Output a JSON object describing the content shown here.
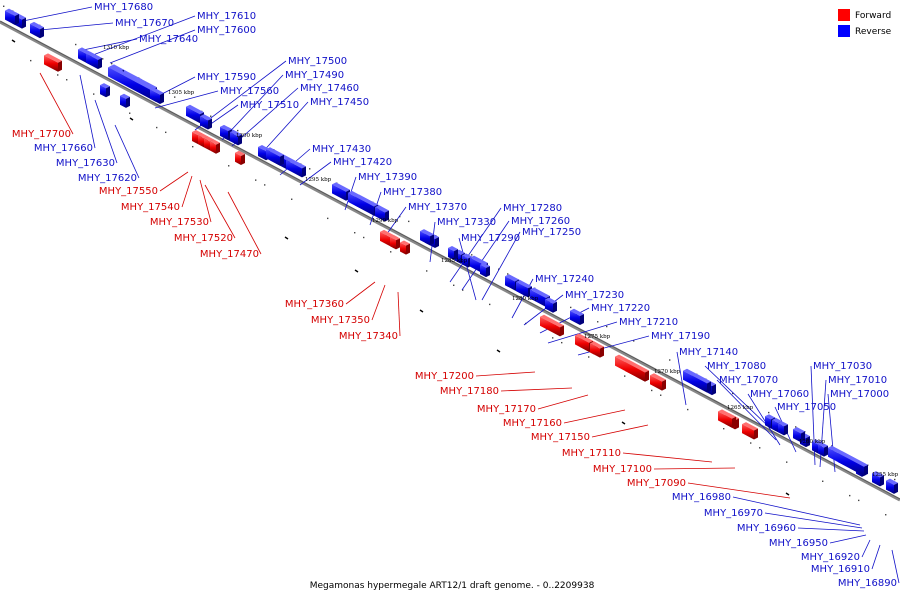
{
  "caption": "Megamonas hypermegale ART12/1 draft genome. - 0..2209938",
  "legend": {
    "forward": {
      "label": "Forward",
      "color": "#ff0000"
    },
    "reverse": {
      "label": "Reverse",
      "color": "#0000ff"
    }
  },
  "colors": {
    "forward_text": "#d40000",
    "reverse_text": "#1010c8",
    "backbone": "#777777"
  },
  "ticks": [
    {
      "pos": 1310,
      "label": "1310 kbp"
    },
    {
      "pos": 1305,
      "label": "1305 kbp"
    },
    {
      "pos": 1300,
      "label": "1300 kbp"
    },
    {
      "pos": 1295,
      "label": "1295 kbp"
    },
    {
      "pos": 1290,
      "label": "1290 kbp"
    },
    {
      "pos": 1285,
      "label": "1285 kbp"
    },
    {
      "pos": 1280,
      "label": "1280 kbp"
    },
    {
      "pos": 1275,
      "label": "1275 kbp"
    },
    {
      "pos": 1270,
      "label": "1270 kbp"
    },
    {
      "pos": 1265,
      "label": "1265 kbp"
    },
    {
      "pos": 1260,
      "label": "1260 kbp"
    },
    {
      "pos": 1255,
      "label": "1255 kbp"
    }
  ],
  "genes": [
    {
      "name": "MHY_17680",
      "strand": "reverse"
    },
    {
      "name": "MHY_17670",
      "strand": "reverse"
    },
    {
      "name": "MHY_17610",
      "strand": "reverse"
    },
    {
      "name": "MHY_17600",
      "strand": "reverse"
    },
    {
      "name": "MHY_17640",
      "strand": "reverse"
    },
    {
      "name": "MHY_17590",
      "strand": "reverse"
    },
    {
      "name": "MHY_17500",
      "strand": "reverse"
    },
    {
      "name": "MHY_17490",
      "strand": "reverse"
    },
    {
      "name": "MHY_17460",
      "strand": "reverse"
    },
    {
      "name": "MHY_17560",
      "strand": "reverse"
    },
    {
      "name": "MHY_17450",
      "strand": "reverse"
    },
    {
      "name": "MHY_17510",
      "strand": "reverse"
    },
    {
      "name": "MHY_17700",
      "strand": "forward"
    },
    {
      "name": "MHY_17660",
      "strand": "reverse"
    },
    {
      "name": "MHY_17630",
      "strand": "reverse"
    },
    {
      "name": "MHY_17620",
      "strand": "reverse"
    },
    {
      "name": "MHY_17550",
      "strand": "forward"
    },
    {
      "name": "MHY_17540",
      "strand": "forward"
    },
    {
      "name": "MHY_17530",
      "strand": "forward"
    },
    {
      "name": "MHY_17520",
      "strand": "forward"
    },
    {
      "name": "MHY_17470",
      "strand": "forward"
    },
    {
      "name": "MHY_17430",
      "strand": "reverse"
    },
    {
      "name": "MHY_17420",
      "strand": "reverse"
    },
    {
      "name": "MHY_17390",
      "strand": "reverse"
    },
    {
      "name": "MHY_17380",
      "strand": "reverse"
    },
    {
      "name": "MHY_17370",
      "strand": "reverse"
    },
    {
      "name": "MHY_17330",
      "strand": "reverse"
    },
    {
      "name": "MHY_17280",
      "strand": "reverse"
    },
    {
      "name": "MHY_17260",
      "strand": "reverse"
    },
    {
      "name": "MHY_17290",
      "strand": "reverse"
    },
    {
      "name": "MHY_17250",
      "strand": "reverse"
    },
    {
      "name": "MHY_17360",
      "strand": "forward"
    },
    {
      "name": "MHY_17350",
      "strand": "forward"
    },
    {
      "name": "MHY_17340",
      "strand": "forward"
    },
    {
      "name": "MHY_17240",
      "strand": "reverse"
    },
    {
      "name": "MHY_17230",
      "strand": "reverse"
    },
    {
      "name": "MHY_17220",
      "strand": "reverse"
    },
    {
      "name": "MHY_17210",
      "strand": "reverse"
    },
    {
      "name": "MHY_17190",
      "strand": "reverse"
    },
    {
      "name": "MHY_17140",
      "strand": "reverse"
    },
    {
      "name": "MHY_17080",
      "strand": "reverse"
    },
    {
      "name": "MHY_17070",
      "strand": "reverse"
    },
    {
      "name": "MHY_17060",
      "strand": "reverse"
    },
    {
      "name": "MHY_17050",
      "strand": "reverse"
    },
    {
      "name": "MHY_17030",
      "strand": "reverse"
    },
    {
      "name": "MHY_17010",
      "strand": "reverse"
    },
    {
      "name": "MHY_17000",
      "strand": "reverse"
    },
    {
      "name": "MHY_17200",
      "strand": "forward"
    },
    {
      "name": "MHY_17180",
      "strand": "forward"
    },
    {
      "name": "MHY_17170",
      "strand": "forward"
    },
    {
      "name": "MHY_17160",
      "strand": "forward"
    },
    {
      "name": "MHY_17150",
      "strand": "forward"
    },
    {
      "name": "MHY_17110",
      "strand": "forward"
    },
    {
      "name": "MHY_17100",
      "strand": "forward"
    },
    {
      "name": "MHY_17090",
      "strand": "forward"
    },
    {
      "name": "MHY_16980",
      "strand": "reverse"
    },
    {
      "name": "MHY_16970",
      "strand": "reverse"
    },
    {
      "name": "MHY_16960",
      "strand": "reverse"
    },
    {
      "name": "MHY_16950",
      "strand": "reverse"
    },
    {
      "name": "MHY_16920",
      "strand": "reverse"
    },
    {
      "name": "MHY_16910",
      "strand": "reverse"
    },
    {
      "name": "MHY_16890",
      "strand": "reverse"
    }
  ]
}
